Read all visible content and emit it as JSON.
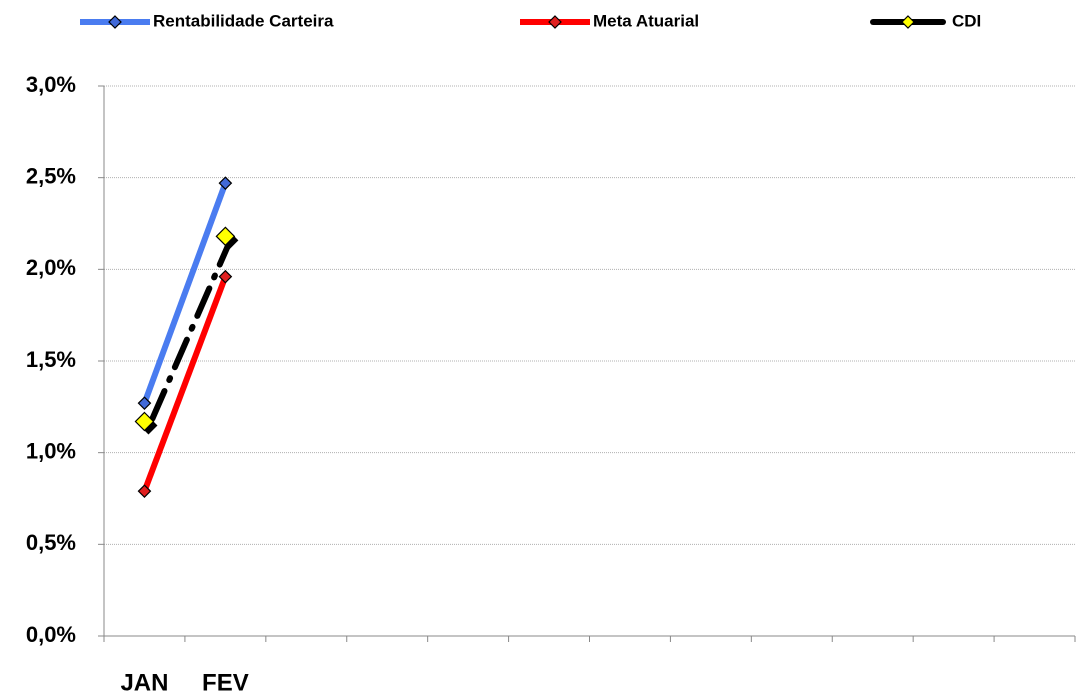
{
  "chart_data": {
    "type": "line",
    "categories": [
      "JAN",
      "FEV",
      null,
      null,
      null,
      null,
      null,
      null,
      null,
      null,
      null,
      null
    ],
    "series": [
      {
        "name": "Rentabilidade Carteira",
        "color": "#4a7cf0",
        "marker_color": "#4169d8",
        "values": [
          1.27,
          2.47,
          null,
          null,
          null,
          null,
          null,
          null,
          null,
          null,
          null,
          null
        ]
      },
      {
        "name": "Meta Atuarial",
        "color": "#ff0000",
        "marker_color": "#e02020",
        "values": [
          0.79,
          1.96,
          null,
          null,
          null,
          null,
          null,
          null,
          null,
          null,
          null,
          null
        ]
      },
      {
        "name": "CDI",
        "color": "#000000",
        "marker_color": "#ffff00",
        "dashed": true,
        "values": [
          1.17,
          2.18,
          null,
          null,
          null,
          null,
          null,
          null,
          null,
          null,
          null,
          null
        ]
      }
    ],
    "ylim": [
      0,
      3
    ],
    "yticks": [
      {
        "value": 0,
        "label": "0,0%"
      },
      {
        "value": 0.5,
        "label": "0,5%"
      },
      {
        "value": 1,
        "label": "1,0%"
      },
      {
        "value": 1.5,
        "label": "1,5%"
      },
      {
        "value": 2,
        "label": "2,0%"
      },
      {
        "value": 2.5,
        "label": "2,5%"
      },
      {
        "value": 3,
        "label": "3,0%"
      }
    ],
    "grid": true,
    "legend": "top"
  }
}
